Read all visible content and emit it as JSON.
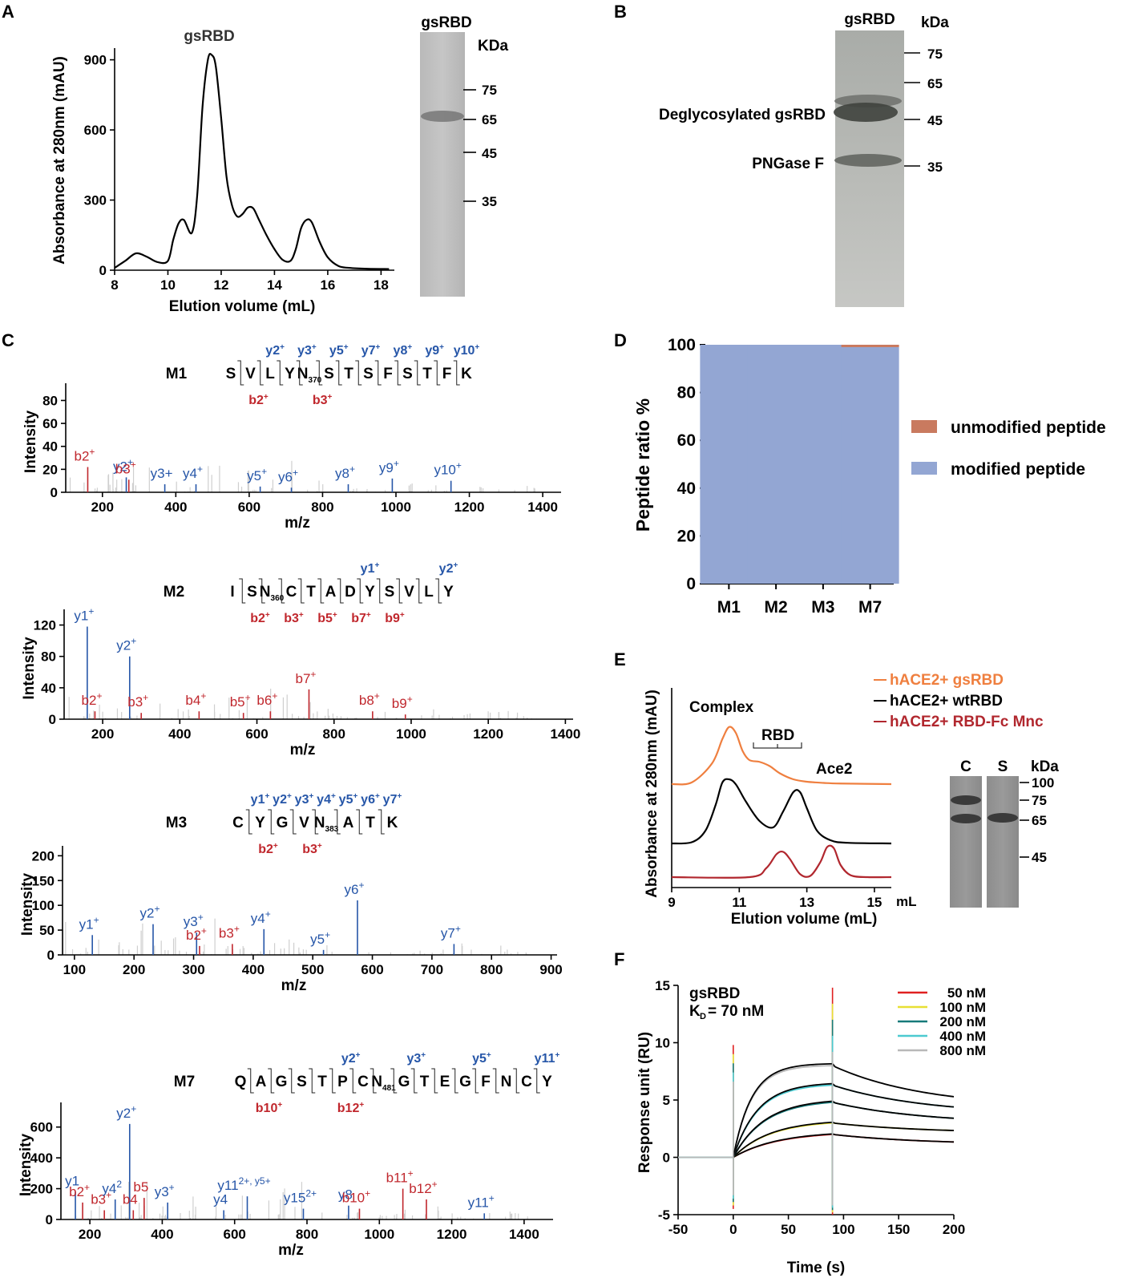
{
  "panels": {
    "A": "A",
    "B": "B",
    "C": "C",
    "D": "D",
    "E": "E",
    "F": "F"
  },
  "panelA": {
    "chart_data": {
      "type": "line",
      "title": "gsRBD",
      "xlabel": "Elution volume (mL)",
      "ylabel": "Absorbance at 280nm (mAU)",
      "xlim": [
        8,
        18.5
      ],
      "ylim": [
        0,
        950
      ],
      "xticks": [
        8,
        10,
        12,
        14,
        16,
        18
      ],
      "yticks": [
        0,
        300,
        600,
        900
      ],
      "x": [
        8.0,
        8.4,
        8.8,
        9.2,
        9.6,
        10.0,
        10.2,
        10.4,
        10.6,
        10.9,
        11.1,
        11.3,
        11.5,
        11.65,
        11.8,
        12.0,
        12.2,
        12.4,
        12.6,
        12.8,
        13.0,
        13.2,
        13.4,
        13.7,
        14.0,
        14.3,
        14.6,
        14.8,
        15.0,
        15.2,
        15.4,
        15.7,
        16.0,
        16.4,
        16.8,
        17.5,
        18.3
      ],
      "y": [
        10,
        40,
        72,
        58,
        35,
        40,
        130,
        200,
        215,
        160,
        320,
        700,
        900,
        920,
        870,
        650,
        400,
        280,
        230,
        240,
        268,
        265,
        220,
        150,
        90,
        45,
        40,
        90,
        180,
        215,
        205,
        120,
        55,
        18,
        10,
        6,
        5
      ]
    },
    "gel": {
      "label": "gsRBD",
      "unit": "KDa",
      "markers": [
        "75",
        "65",
        "45",
        "35"
      ]
    }
  },
  "panelB": {
    "label": "gsRBD",
    "unit": "kDa",
    "markers": [
      "75",
      "65",
      "45",
      "35"
    ],
    "bands": [
      "Deglycosylated gsRBD",
      "PNGase F"
    ]
  },
  "panelC": {
    "xlabel": "m/z",
    "ylabel": "Intensity",
    "spectra": [
      {
        "name": "M1",
        "xlim": [
          100,
          1450
        ],
        "ylim": [
          0,
          95
        ],
        "xticks": [
          200,
          400,
          600,
          800,
          1000,
          1200,
          1400
        ],
        "yticks": [
          0,
          20,
          40,
          60,
          80
        ],
        "seq": [
          "S",
          "V",
          "L",
          "Y",
          "N",
          "S",
          "T",
          "S",
          "F",
          "S",
          "T",
          "F",
          "K"
        ],
        "mod_index": 4,
        "mod_sub": "370",
        "top_ions": [
          "y10",
          "y9",
          "y8",
          "y7",
          "y5",
          "y3",
          "y2"
        ],
        "bottom_ions": [
          "b2",
          "b3"
        ],
        "peaks": [
          {
            "mz": 160,
            "h": 22,
            "c": "r",
            "lab": "b2",
            "sup": "+"
          },
          {
            "mz": 265,
            "h": 13,
            "c": "b",
            "lab": "y2",
            "sup": "+"
          },
          {
            "mz": 272,
            "h": 11,
            "c": "r",
            "lab": "b3",
            "sup": "+"
          },
          {
            "mz": 370,
            "h": 7,
            "c": "b",
            "lab": "y3+",
            "sup": ""
          },
          {
            "mz": 455,
            "h": 7,
            "c": "b",
            "lab": "y4",
            "sup": "+"
          },
          {
            "mz": 630,
            "h": 5,
            "c": "b",
            "lab": "y5",
            "sup": "+"
          },
          {
            "mz": 715,
            "h": 4,
            "c": "b",
            "lab": "y6",
            "sup": "+"
          },
          {
            "mz": 870,
            "h": 7,
            "c": "b",
            "lab": "y8",
            "sup": "+"
          },
          {
            "mz": 990,
            "h": 12,
            "c": "b",
            "lab": "y9",
            "sup": "+"
          },
          {
            "mz": 1150,
            "h": 10,
            "c": "b",
            "lab": "y10",
            "sup": "+"
          }
        ]
      },
      {
        "name": "M2",
        "xlim": [
          100,
          1420
        ],
        "ylim": [
          0,
          140
        ],
        "xticks": [
          200,
          400,
          600,
          800,
          1000,
          1200,
          1400
        ],
        "yticks": [
          0,
          40,
          80,
          120
        ],
        "seq": [
          "I",
          "S",
          "N",
          "C",
          "T",
          "A",
          "D",
          "Y",
          "S",
          "V",
          "L",
          "Y"
        ],
        "mod_index": 2,
        "mod_sub": "360",
        "top_ions": [
          "y2",
          "y1"
        ],
        "bottom_ions": [
          "b2",
          "b3",
          "b5",
          "b7",
          "b9"
        ],
        "peaks": [
          {
            "mz": 160,
            "h": 118,
            "c": "b",
            "lab": "y1",
            "sup": "+"
          },
          {
            "mz": 180,
            "h": 10,
            "c": "r",
            "lab": "b2",
            "sup": "+"
          },
          {
            "mz": 270,
            "h": 80,
            "c": "b",
            "lab": "y2",
            "sup": "+"
          },
          {
            "mz": 300,
            "h": 8,
            "c": "r",
            "lab": "b3",
            "sup": "+"
          },
          {
            "mz": 450,
            "h": 10,
            "c": "r",
            "lab": "b4",
            "sup": "+"
          },
          {
            "mz": 565,
            "h": 8,
            "c": "r",
            "lab": "b5",
            "sup": "+"
          },
          {
            "mz": 635,
            "h": 10,
            "c": "r",
            "lab": "b6",
            "sup": "+"
          },
          {
            "mz": 735,
            "h": 38,
            "c": "r",
            "lab": "b7",
            "sup": "+"
          },
          {
            "mz": 900,
            "h": 10,
            "c": "r",
            "lab": "b8",
            "sup": "+"
          },
          {
            "mz": 985,
            "h": 6,
            "c": "r",
            "lab": "b9",
            "sup": "+"
          }
        ]
      },
      {
        "name": "M3",
        "xlim": [
          80,
          910
        ],
        "ylim": [
          0,
          220
        ],
        "xticks": [
          100,
          200,
          300,
          400,
          500,
          600,
          700,
          800,
          900
        ],
        "yticks": [
          0,
          50,
          100,
          150,
          200
        ],
        "seq": [
          "C",
          "Y",
          "G",
          "V",
          "N",
          "A",
          "T",
          "K"
        ],
        "mod_index": 4,
        "mod_sub": "383",
        "top_ions": [
          "y7",
          "y6",
          "y5",
          "y4",
          "y3",
          "y2",
          "y1"
        ],
        "bottom_ions": [
          "b2",
          "b3"
        ],
        "peaks": [
          {
            "mz": 130,
            "h": 40,
            "c": "b",
            "lab": "y1",
            "sup": "+"
          },
          {
            "mz": 232,
            "h": 62,
            "c": "b",
            "lab": "y2",
            "sup": "+"
          },
          {
            "mz": 305,
            "h": 45,
            "c": "b",
            "lab": "y3",
            "sup": "+"
          },
          {
            "mz": 310,
            "h": 18,
            "c": "r",
            "lab": "b2",
            "sup": "+"
          },
          {
            "mz": 365,
            "h": 22,
            "c": "r",
            "lab": "b3",
            "sup": "+"
          },
          {
            "mz": 418,
            "h": 52,
            "c": "b",
            "lab": "y4",
            "sup": "+"
          },
          {
            "mz": 518,
            "h": 10,
            "c": "b",
            "lab": "y5",
            "sup": "+"
          },
          {
            "mz": 575,
            "h": 110,
            "c": "b",
            "lab": "y6",
            "sup": "+"
          },
          {
            "mz": 737,
            "h": 22,
            "c": "b",
            "lab": "y7",
            "sup": "+"
          }
        ]
      },
      {
        "name": "M7",
        "xlim": [
          120,
          1480
        ],
        "ylim": [
          0,
          760
        ],
        "xticks": [
          200,
          400,
          600,
          800,
          1000,
          1200,
          1400
        ],
        "yticks": [
          0,
          200,
          400,
          600
        ],
        "seq": [
          "Q",
          "A",
          "G",
          "S",
          "T",
          "P",
          "C",
          "N",
          "G",
          "T",
          "E",
          "G",
          "F",
          "N",
          "C",
          "Y"
        ],
        "mod_index": 7,
        "mod_sub": "481",
        "top_ions": [
          "y11",
          "y5",
          "y3",
          "y2"
        ],
        "bottom_ions": [
          "b10",
          "b12"
        ],
        "peaks": [
          {
            "mz": 160,
            "h": 180,
            "c": "b",
            "lab": "y1",
            "sup": ""
          },
          {
            "mz": 180,
            "h": 110,
            "c": "r",
            "lab": "b2",
            "sup": "+"
          },
          {
            "mz": 240,
            "h": 60,
            "c": "r",
            "lab": "b3",
            "sup": "+"
          },
          {
            "mz": 270,
            "h": 130,
            "c": "b",
            "lab": "y4",
            "sup": "2"
          },
          {
            "mz": 310,
            "h": 620,
            "c": "b",
            "lab": "y2",
            "sup": "+"
          },
          {
            "mz": 320,
            "h": 60,
            "c": "r",
            "lab": "b4",
            "sup": ""
          },
          {
            "mz": 350,
            "h": 140,
            "c": "r",
            "lab": "b5",
            "sup": ""
          },
          {
            "mz": 415,
            "h": 110,
            "c": "b",
            "lab": "y3",
            "sup": "+"
          },
          {
            "mz": 570,
            "h": 60,
            "c": "b",
            "lab": "y4",
            "sup": ""
          },
          {
            "mz": 635,
            "h": 150,
            "c": "b",
            "lab": "y11",
            "sup": "2+, y5+"
          },
          {
            "mz": 790,
            "h": 70,
            "c": "b",
            "lab": "y15",
            "sup": "2+"
          },
          {
            "mz": 915,
            "h": 90,
            "c": "b",
            "lab": "y8",
            "sup": ""
          },
          {
            "mz": 945,
            "h": 70,
            "c": "r",
            "lab": "b10",
            "sup": "+"
          },
          {
            "mz": 1065,
            "h": 200,
            "c": "r",
            "lab": "b11",
            "sup": "+"
          },
          {
            "mz": 1130,
            "h": 130,
            "c": "r",
            "lab": "b12",
            "sup": "+"
          },
          {
            "mz": 1290,
            "h": 40,
            "c": "b",
            "lab": "y11",
            "sup": "+"
          }
        ]
      }
    ]
  },
  "panelD": {
    "chart_data": {
      "type": "bar",
      "stacked": true,
      "categories": [
        "M1",
        "M2",
        "M3",
        "M7"
      ],
      "ylabel": "Peptide ratio %",
      "ylim": [
        0,
        100
      ],
      "yticks": [
        0,
        20,
        40,
        60,
        80,
        100
      ],
      "series": [
        {
          "name": "modified peptide",
          "values": [
            100,
            100,
            100,
            99
          ],
          "color": "#93a6d3"
        },
        {
          "name": "unmodified peptide",
          "values": [
            0,
            0,
            0,
            1
          ],
          "color": "#c97a5f"
        }
      ]
    },
    "legend": [
      "unmodified peptide",
      "modified peptide"
    ]
  },
  "panelE": {
    "chart_data": {
      "type": "line",
      "xlabel": "Elution volume (mL)",
      "ylabel": "Absorbance at 280nm (mAU)",
      "xlim": [
        9,
        15.5
      ],
      "xticks": [
        9,
        11,
        13,
        15
      ],
      "xunit": "mL",
      "series": [
        {
          "name": "hACE2+ gsRBD",
          "color": "#ef7f3f",
          "offset": 2.0,
          "x": [
            9,
            9.6,
            10.2,
            10.5,
            10.7,
            10.9,
            11.1,
            11.3,
            11.6,
            11.9,
            12.2,
            12.6,
            13.0,
            13.5,
            14,
            15.5
          ],
          "y": [
            0,
            0.03,
            0.35,
            0.75,
            0.95,
            0.85,
            0.55,
            0.4,
            0.37,
            0.3,
            0.18,
            0.08,
            0.04,
            0.02,
            0.01,
            0
          ]
        },
        {
          "name": "hACE2+ wtRBD",
          "color": "#000000",
          "offset": 1.0,
          "x": [
            9,
            9.6,
            10.0,
            10.3,
            10.5,
            10.7,
            10.9,
            11.2,
            11.6,
            12.0,
            12.3,
            12.6,
            12.8,
            13.0,
            13.3,
            13.7,
            14.2,
            15.5
          ],
          "y": [
            0,
            0.02,
            0.2,
            0.6,
            0.95,
            1.0,
            0.92,
            0.65,
            0.35,
            0.25,
            0.5,
            0.8,
            0.8,
            0.55,
            0.2,
            0.05,
            0.01,
            0
          ]
        },
        {
          "name": "hACE2+ RBD-Fc Mnc",
          "color": "#b1272e",
          "offset": 0,
          "x": [
            9,
            11.3,
            11.8,
            12.1,
            12.3,
            12.5,
            12.8,
            13.1,
            13.4,
            13.6,
            13.8,
            14.0,
            14.3,
            14.8,
            15.5
          ],
          "y": [
            0,
            0,
            0.15,
            0.38,
            0.42,
            0.3,
            0.05,
            0.02,
            0.25,
            0.5,
            0.48,
            0.2,
            0.03,
            0,
            0
          ]
        }
      ]
    },
    "labels": {
      "complex": "Complex",
      "rbd": "RBD",
      "ace2": "Ace2"
    },
    "gel": {
      "lanes": [
        "C",
        "S"
      ],
      "unit": "kDa",
      "markers": [
        "100",
        "75",
        "65",
        "45"
      ]
    }
  },
  "panelF": {
    "chart_data": {
      "type": "line",
      "xlabel": "Time (s)",
      "ylabel": "Response unit (RU)",
      "xlim": [
        -50,
        200
      ],
      "ylim": [
        -5,
        15
      ],
      "xticks": [
        -50,
        0,
        50,
        100,
        150,
        200
      ],
      "yticks": [
        -5,
        0,
        5,
        10,
        15
      ],
      "series": [
        {
          "name": "50 nM",
          "color": "#e02020",
          "plateau": 2.0,
          "end": 1.1
        },
        {
          "name": "100 nM",
          "color": "#e8e034",
          "plateau": 3.0,
          "end": 2.1
        },
        {
          "name": "200 nM",
          "color": "#167a7a",
          "plateau": 4.8,
          "end": 2.9
        },
        {
          "name": "400 nM",
          "color": "#4ccad0",
          "plateau": 6.3,
          "end": 3.7
        },
        {
          "name": "800 nM",
          "color": "#b8b8b8",
          "plateau": 8.0,
          "end": 4.3
        }
      ]
    },
    "title": "gsRBD",
    "kd_prefix": "K",
    "kd_sub": "D",
    "kd_value": "= 70 nM"
  }
}
